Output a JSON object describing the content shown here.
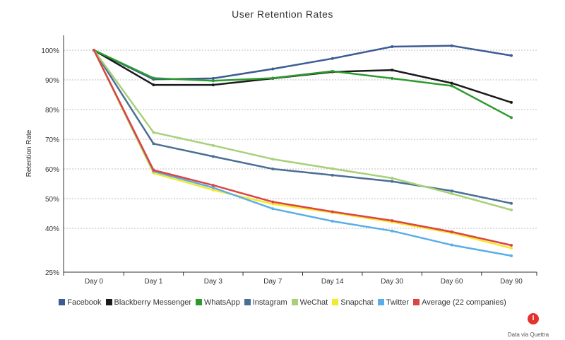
{
  "chart_data": {
    "type": "line",
    "title": "User Retention Rates",
    "xlabel": "",
    "ylabel": "Retention Rate",
    "categories": [
      "Day 0",
      "Day 1",
      "Day 3",
      "Day 7",
      "Day 14",
      "Day 30",
      "Day 60",
      "Day 90"
    ],
    "y_ticks": [
      {
        "value": 100,
        "label": "100%"
      },
      {
        "value": 90,
        "label": "90%"
      },
      {
        "value": 80,
        "label": "80%"
      },
      {
        "value": 70,
        "label": "70%"
      },
      {
        "value": 60,
        "label": "60%"
      },
      {
        "value": 50,
        "label": "50%"
      },
      {
        "value": 40,
        "label": "40%"
      },
      {
        "value": 25,
        "label": "25%"
      }
    ],
    "ylim": [
      25,
      105
    ],
    "grid": true,
    "legend_position": "bottom",
    "series": [
      {
        "name": "Facebook",
        "color": "#3b5c95",
        "values": [
          100,
          90.2,
          90.5,
          93.7,
          97.2,
          101.2,
          101.5,
          98.2
        ]
      },
      {
        "name": "Blackberry Messenger",
        "color": "#1a1a1a",
        "values": [
          100,
          88.3,
          88.3,
          90.5,
          92.7,
          93.3,
          88.9,
          82.4
        ]
      },
      {
        "name": "WhatsApp",
        "color": "#2e9a2e",
        "values": [
          100,
          90.6,
          89.7,
          90.6,
          92.9,
          90.5,
          88.0,
          77.3
        ]
      },
      {
        "name": "Instagram",
        "color": "#4a6f95",
        "values": [
          100,
          68.5,
          64.2,
          60.0,
          57.9,
          55.8,
          52.6,
          48.4
        ]
      },
      {
        "name": "WeChat",
        "color": "#a8d07a",
        "values": [
          100,
          72.3,
          67.9,
          63.3,
          60.1,
          56.9,
          51.7,
          46.2
        ]
      },
      {
        "name": "Snapchat",
        "color": "#f2ea2a",
        "values": [
          100,
          58.6,
          52.9,
          48.2,
          45.3,
          42.1,
          38.4,
          33.2
        ]
      },
      {
        "name": "Twitter",
        "color": "#5aaee6",
        "values": [
          100,
          59.2,
          53.7,
          46.6,
          42.4,
          39.1,
          34.3,
          30.6
        ]
      },
      {
        "name": "Average (22 companies)",
        "color": "#dd4444",
        "values": [
          100,
          59.6,
          54.5,
          48.9,
          45.6,
          42.6,
          38.8,
          34.2
        ]
      }
    ]
  },
  "credit": {
    "logo_letter": "I",
    "text": "Data via Quettra"
  }
}
